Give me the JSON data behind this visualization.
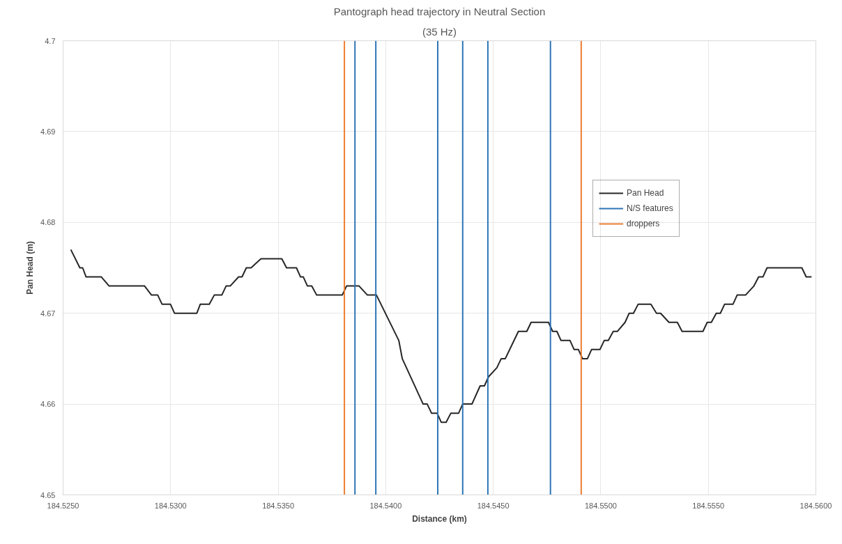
{
  "chart_data": {
    "type": "line",
    "title": "Pantograph head trajectory in Neutral Section",
    "subtitle": "(35 Hz)",
    "xlabel": "Distance (km)",
    "ylabel": "Pan Head (m)",
    "x": [
      184.52536,
      184.52578,
      184.52591,
      184.52607,
      184.52678,
      184.52714,
      184.52879,
      184.52911,
      184.5294,
      184.5296,
      184.52999,
      184.53018,
      184.53122,
      184.53138,
      184.5318,
      184.53203,
      184.53238,
      184.53258,
      184.53277,
      184.53316,
      184.53332,
      184.53352,
      184.53374,
      184.5342,
      184.53517,
      184.53539,
      184.53585,
      184.53604,
      184.53617,
      184.53636,
      184.53656,
      184.53679,
      184.53798,
      184.53818,
      184.53876,
      184.53915,
      184.53957,
      184.54061,
      184.54077,
      184.54174,
      184.54193,
      184.54213,
      184.54239,
      184.54258,
      184.54281,
      184.54303,
      184.54339,
      184.54358,
      184.54401,
      184.54439,
      184.54459,
      184.54478,
      184.54517,
      184.54537,
      184.54556,
      184.54617,
      184.54656,
      184.54676,
      184.54757,
      184.54776,
      184.54796,
      184.54815,
      184.54857,
      184.54876,
      184.54896,
      184.54915,
      184.54938,
      184.54957,
      184.54996,
      184.55016,
      184.55035,
      184.55058,
      184.55077,
      184.55113,
      184.55132,
      184.55152,
      184.55174,
      184.55233,
      184.55259,
      184.55278,
      184.55317,
      184.55356,
      184.55378,
      184.55475,
      184.55495,
      184.55514,
      184.55537,
      184.55556,
      184.55576,
      184.55615,
      184.55634,
      184.55673,
      184.55712,
      184.55734,
      184.55754,
      184.55773,
      184.55935,
      184.55955,
      184.5598
    ],
    "series": [
      {
        "name": "Pan Head",
        "color": "#262626",
        "values": [
          4.677,
          4.675,
          4.675,
          4.674,
          4.674,
          4.673,
          4.673,
          4.672,
          4.672,
          4.671,
          4.671,
          4.67,
          4.67,
          4.671,
          4.671,
          4.672,
          4.672,
          4.673,
          4.673,
          4.674,
          4.674,
          4.675,
          4.675,
          4.676,
          4.676,
          4.675,
          4.675,
          4.674,
          4.674,
          4.673,
          4.673,
          4.672,
          4.672,
          4.673,
          4.673,
          4.672,
          4.672,
          4.667,
          4.665,
          4.66,
          4.66,
          4.659,
          4.659,
          4.658,
          4.658,
          4.659,
          4.659,
          4.66,
          4.66,
          4.662,
          4.662,
          4.663,
          4.664,
          4.665,
          4.665,
          4.668,
          4.668,
          4.669,
          4.669,
          4.668,
          4.668,
          4.667,
          4.667,
          4.666,
          4.666,
          4.665,
          4.665,
          4.666,
          4.666,
          4.667,
          4.667,
          4.668,
          4.668,
          4.669,
          4.67,
          4.67,
          4.671,
          4.671,
          4.67,
          4.67,
          4.669,
          4.669,
          4.668,
          4.668,
          4.669,
          4.669,
          4.67,
          4.67,
          4.671,
          4.671,
          4.672,
          4.672,
          4.673,
          4.674,
          4.674,
          4.675,
          4.675,
          4.674,
          4.674
        ]
      },
      {
        "name": "N/S features",
        "color": "#2e75b6",
        "x": [
          184.53857,
          184.53857
        ],
        "values": [
          4.65,
          4.7
        ]
      },
      {
        "color": "#2e75b6",
        "x": [
          184.53954,
          184.53954
        ],
        "values": [
          4.65,
          4.7
        ]
      },
      {
        "color": "#2e75b6",
        "x": [
          184.54242,
          184.54242
        ],
        "values": [
          4.65,
          4.7
        ]
      },
      {
        "color": "#2e75b6",
        "x": [
          184.54358,
          184.54358
        ],
        "values": [
          4.65,
          4.7
        ]
      },
      {
        "color": "#2e75b6",
        "x": [
          184.54475,
          184.54475
        ],
        "values": [
          4.65,
          4.7
        ]
      },
      {
        "color": "#2e75b6",
        "x": [
          184.54766,
          184.54766
        ],
        "values": [
          4.65,
          4.7
        ]
      },
      {
        "name": "droppers",
        "color": "#ed7d31",
        "x": [
          184.53808,
          184.53808
        ],
        "values": [
          4.65,
          4.7
        ]
      },
      {
        "color": "#ed7d31",
        "x": [
          184.54909,
          184.54909
        ],
        "values": [
          4.65,
          4.7
        ]
      }
    ],
    "xlim": [
      184.525,
      184.56
    ],
    "ylim": [
      4.65,
      4.7
    ],
    "xticks": [
      {
        "value": 184.525,
        "label": "184.5250"
      },
      {
        "value": 184.53,
        "label": "184.5300"
      },
      {
        "value": 184.535,
        "label": "184.5350"
      },
      {
        "value": 184.54,
        "label": "184.5400"
      },
      {
        "value": 184.545,
        "label": "184.5450"
      },
      {
        "value": 184.55,
        "label": "184.5500"
      },
      {
        "value": 184.555,
        "label": "184.5550"
      },
      {
        "value": 184.56,
        "label": "184.5600"
      }
    ],
    "yticks": [
      4.65,
      4.66,
      4.67,
      4.68,
      4.69,
      4.7
    ],
    "grid": true,
    "legend": "top right"
  }
}
